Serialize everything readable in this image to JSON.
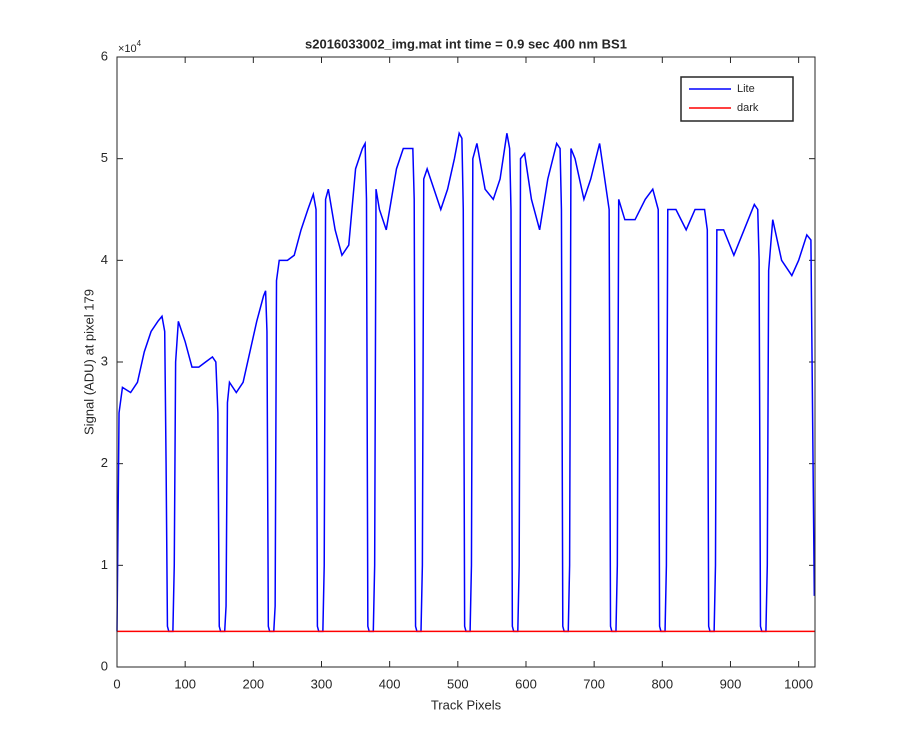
{
  "chart_data": {
    "type": "line",
    "title": "s2016033002_img.mat int time = 0.9 sec  400 nm BS1",
    "x_label": "Track Pixels",
    "y_label": "Signal (ADU) at pixel 179",
    "y_multiplier": {
      "base": "×10",
      "power": "4"
    },
    "xlim": [
      0,
      1024
    ],
    "ylim": [
      0,
      6
    ],
    "xticks": [
      0,
      100,
      200,
      300,
      400,
      500,
      600,
      700,
      800,
      900,
      1000
    ],
    "yticks": [
      0,
      1,
      2,
      3,
      4,
      5,
      6
    ],
    "legend": "upper right",
    "series": [
      {
        "name": "Lite",
        "color": "#0000ff",
        "x": [
          0,
          3,
          8,
          20,
          30,
          40,
          50,
          60,
          66,
          70,
          72,
          74,
          76,
          82,
          84,
          86,
          90,
          100,
          110,
          120,
          130,
          140,
          145,
          148,
          150,
          152,
          158,
          160,
          162,
          165,
          175,
          185,
          195,
          205,
          215,
          218,
          220,
          222,
          224,
          230,
          232,
          234,
          238,
          250,
          260,
          270,
          280,
          288,
          292,
          294,
          296,
          302,
          304,
          306,
          310,
          320,
          330,
          340,
          350,
          360,
          364,
          366,
          368,
          370,
          376,
          378,
          380,
          385,
          395,
          410,
          420,
          434,
          436,
          438,
          440,
          446,
          448,
          450,
          455,
          465,
          475,
          485,
          495,
          502,
          506,
          508,
          510,
          512,
          518,
          520,
          522,
          528,
          540,
          552,
          562,
          572,
          576,
          578,
          580,
          582,
          588,
          590,
          592,
          598,
          608,
          620,
          632,
          645,
          650,
          652,
          654,
          656,
          662,
          664,
          666,
          672,
          685,
          695,
          708,
          722,
          724,
          726,
          732,
          734,
          736,
          745,
          760,
          775,
          786,
          794,
          796,
          798,
          804,
          806,
          808,
          820,
          835,
          848,
          862,
          866,
          868,
          870,
          876,
          878,
          880,
          890,
          905,
          920,
          935,
          940,
          942,
          944,
          946,
          952,
          954,
          956,
          962,
          975,
          990,
          1000,
          1012,
          1018,
          1023
        ],
        "values": [
          0.35,
          2.5,
          2.75,
          2.7,
          2.8,
          3.1,
          3.3,
          3.4,
          3.45,
          3.3,
          2.0,
          0.4,
          0.35,
          0.35,
          1.0,
          3.0,
          3.4,
          3.2,
          2.95,
          2.95,
          3.0,
          3.05,
          3.0,
          2.5,
          0.4,
          0.35,
          0.35,
          0.6,
          2.6,
          2.8,
          2.7,
          2.8,
          3.1,
          3.4,
          3.65,
          3.7,
          3.3,
          0.4,
          0.35,
          0.35,
          0.6,
          3.8,
          4.0,
          4.0,
          4.05,
          4.3,
          4.5,
          4.65,
          4.5,
          0.4,
          0.35,
          0.35,
          1.0,
          4.6,
          4.7,
          4.3,
          4.05,
          4.15,
          4.9,
          5.1,
          5.15,
          4.6,
          0.4,
          0.35,
          0.35,
          1.0,
          4.7,
          4.5,
          4.3,
          4.9,
          5.1,
          5.1,
          4.6,
          0.4,
          0.35,
          0.35,
          1.0,
          4.8,
          4.9,
          4.7,
          4.5,
          4.7,
          5.0,
          5.25,
          5.2,
          4.5,
          0.4,
          0.35,
          0.35,
          1.0,
          5.0,
          5.15,
          4.7,
          4.6,
          4.8,
          5.25,
          5.1,
          4.5,
          0.4,
          0.35,
          0.35,
          1.0,
          5.0,
          5.05,
          4.6,
          4.3,
          4.8,
          5.15,
          5.1,
          4.5,
          0.4,
          0.35,
          0.35,
          1.0,
          5.1,
          5.0,
          4.6,
          4.8,
          5.15,
          4.5,
          0.4,
          0.35,
          0.35,
          1.0,
          4.6,
          4.4,
          4.4,
          4.6,
          4.7,
          4.5,
          0.4,
          0.35,
          0.35,
          1.0,
          4.5,
          4.5,
          4.3,
          4.5,
          4.5,
          4.3,
          0.4,
          0.35,
          0.35,
          1.0,
          4.3,
          4.3,
          4.05,
          4.3,
          4.55,
          4.5,
          4.0,
          0.4,
          0.35,
          0.35,
          1.0,
          3.9,
          4.4,
          4.0,
          3.85,
          4.0,
          4.25,
          4.2,
          0.7
        ]
      },
      {
        "name": "dark",
        "color": "#ff0000",
        "x": [
          0,
          1024
        ],
        "values": [
          0.35,
          0.35
        ]
      }
    ]
  }
}
